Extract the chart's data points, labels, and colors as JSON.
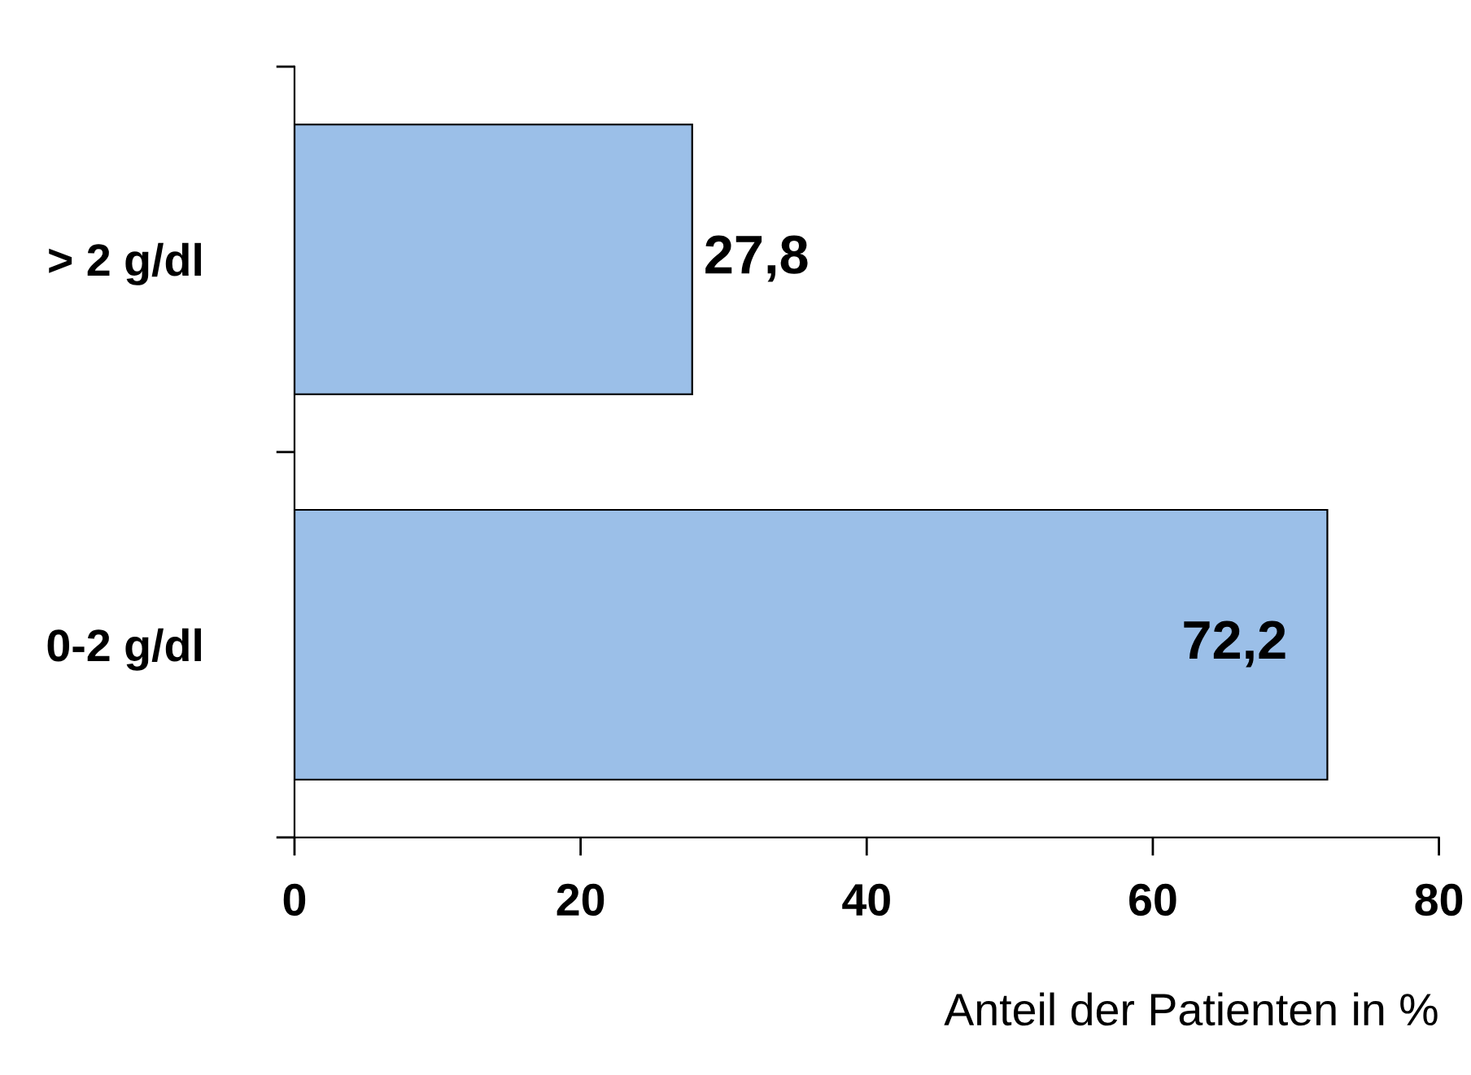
{
  "chart_data": {
    "type": "bar",
    "orientation": "horizontal",
    "categories": [
      "> 2 g/dl",
      "0-2 g/dl"
    ],
    "values": [
      27.8,
      72.2
    ],
    "value_labels": [
      "27,8",
      "72,2"
    ],
    "color": "#9bbfe8",
    "xlim": [
      0,
      80
    ],
    "xticks": [
      0,
      20,
      40,
      60,
      80
    ],
    "xlabel": "Anteil der Patienten in %",
    "grid": false,
    "legend": false
  }
}
